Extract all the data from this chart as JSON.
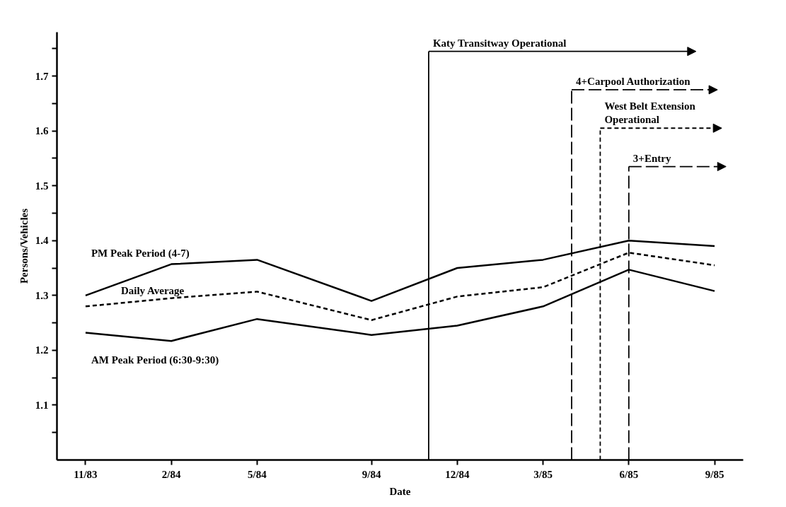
{
  "chart_data": {
    "type": "line",
    "xlabel": "Date",
    "ylabel": "Persons/Vehicles",
    "x": [
      "1983-11",
      "1984-02",
      "1984-05",
      "1984-09",
      "1984-12",
      "1985-03",
      "1985-06",
      "1985-09"
    ],
    "series": [
      {
        "name": "PM Peak Period (4-7)",
        "color": "#000000",
        "line_style": "solid",
        "values": [
          1.3,
          1.357,
          1.365,
          1.29,
          1.35,
          1.365,
          1.4,
          1.39
        ]
      },
      {
        "name": "Daily Average",
        "color": "#000000",
        "line_style": "dashed",
        "values": [
          1.28,
          1.295,
          1.307,
          1.255,
          1.298,
          1.315,
          1.378,
          1.355
        ]
      },
      {
        "name": "AM Peak Period (6:30-9:30)",
        "color": "#000000",
        "line_style": "solid",
        "values": [
          1.232,
          1.217,
          1.257,
          1.228,
          1.245,
          1.28,
          1.347,
          1.308
        ]
      }
    ],
    "xlim": [
      "1983-10",
      "1985-10"
    ],
    "xticks": [
      {
        "value": "1983-11",
        "label": "11/83"
      },
      {
        "value": "1984-02",
        "label": "2/84"
      },
      {
        "value": "1984-05",
        "label": "5/84"
      },
      {
        "value": "1984-09",
        "label": "9/84"
      },
      {
        "value": "1984-12",
        "label": "12/84"
      },
      {
        "value": "1985-03",
        "label": "3/85"
      },
      {
        "value": "1985-06",
        "label": "6/85"
      },
      {
        "value": "1985-09",
        "label": "9/85"
      }
    ],
    "ylim": [
      1.0,
      1.78
    ],
    "yticks": [
      {
        "value": 1.05,
        "label": null
      },
      1.1,
      {
        "value": 1.15,
        "label": null
      },
      1.2,
      {
        "value": 1.25,
        "label": null
      },
      1.3,
      {
        "value": 1.35,
        "label": null
      },
      1.4,
      {
        "value": 1.45,
        "label": null
      },
      1.5,
      {
        "value": 1.55,
        "label": null
      },
      1.6,
      {
        "value": 1.65,
        "label": null
      },
      1.7,
      {
        "value": 1.75,
        "label": null
      }
    ],
    "ref_lines": [
      {
        "axis": "x",
        "value": "1984-11",
        "label": "Katy Transitway Operational",
        "line_style": "solid"
      },
      {
        "axis": "x",
        "value": "1985-04",
        "label": "4+Carpool Authorization",
        "line_style": "longdash"
      },
      {
        "axis": "x",
        "value": "1985-05",
        "label": "West Belt Extension Operational",
        "line_style": "dashed"
      },
      {
        "axis": "x",
        "value": "1985-06",
        "label": "3+Entry",
        "line_style": "longdash"
      }
    ],
    "grid": false,
    "marker": "none"
  }
}
